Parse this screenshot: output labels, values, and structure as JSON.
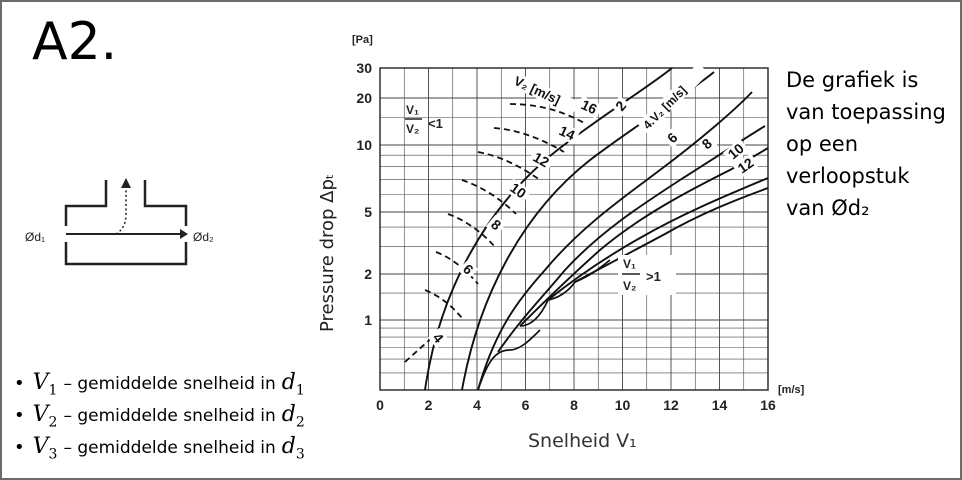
{
  "slide": {
    "title": "A2.",
    "note_lines": [
      "De grafiek is",
      "van toepassing",
      "op een",
      "verloopstuk",
      "van Ød₂"
    ],
    "bullets": [
      {
        "symbol": "V",
        "sub": "1",
        "text": "– gemiddelde snelheid in",
        "target": "d",
        "target_sub": "1"
      },
      {
        "symbol": "V",
        "sub": "2",
        "text": "– gemiddelde snelheid in",
        "target": "d",
        "target_sub": "2"
      },
      {
        "symbol": "V",
        "sub": "3",
        "text": "– gemiddelde snelheid in",
        "target": "d",
        "target_sub": "3"
      }
    ]
  },
  "diagram": {
    "inlet_label": "Ød₁",
    "outlet_label": "Ød₂"
  },
  "chart_data": {
    "type": "line",
    "y_unit": "[Pa]",
    "x_unit": "[m/s]",
    "ylabel": "Pressure drop Δpₜ",
    "xlabel": "Snelheid V₁",
    "x_ticks": [
      "0",
      "2",
      "4",
      "6",
      "8",
      "10",
      "12",
      "14",
      "16"
    ],
    "y_ticks": [
      "30",
      "20",
      "10",
      "5",
      "2",
      "1"
    ],
    "y_scale": "log",
    "xlim": [
      0,
      16
    ],
    "ylim": [
      0.4,
      30
    ],
    "grid": true,
    "family_title": "V₂ [m/s]",
    "ratio_low": "<1",
    "ratio_high": ">1",
    "ratio_num": "V₁",
    "ratio_den": "V₂",
    "solid_curve_labels": [
      "16",
      "2",
      "4.V₂ [m/s]",
      "6",
      "8",
      "10",
      "12"
    ],
    "dashed_curve_labels": [
      "14",
      "12",
      "10",
      "8",
      "6",
      "4"
    ]
  }
}
